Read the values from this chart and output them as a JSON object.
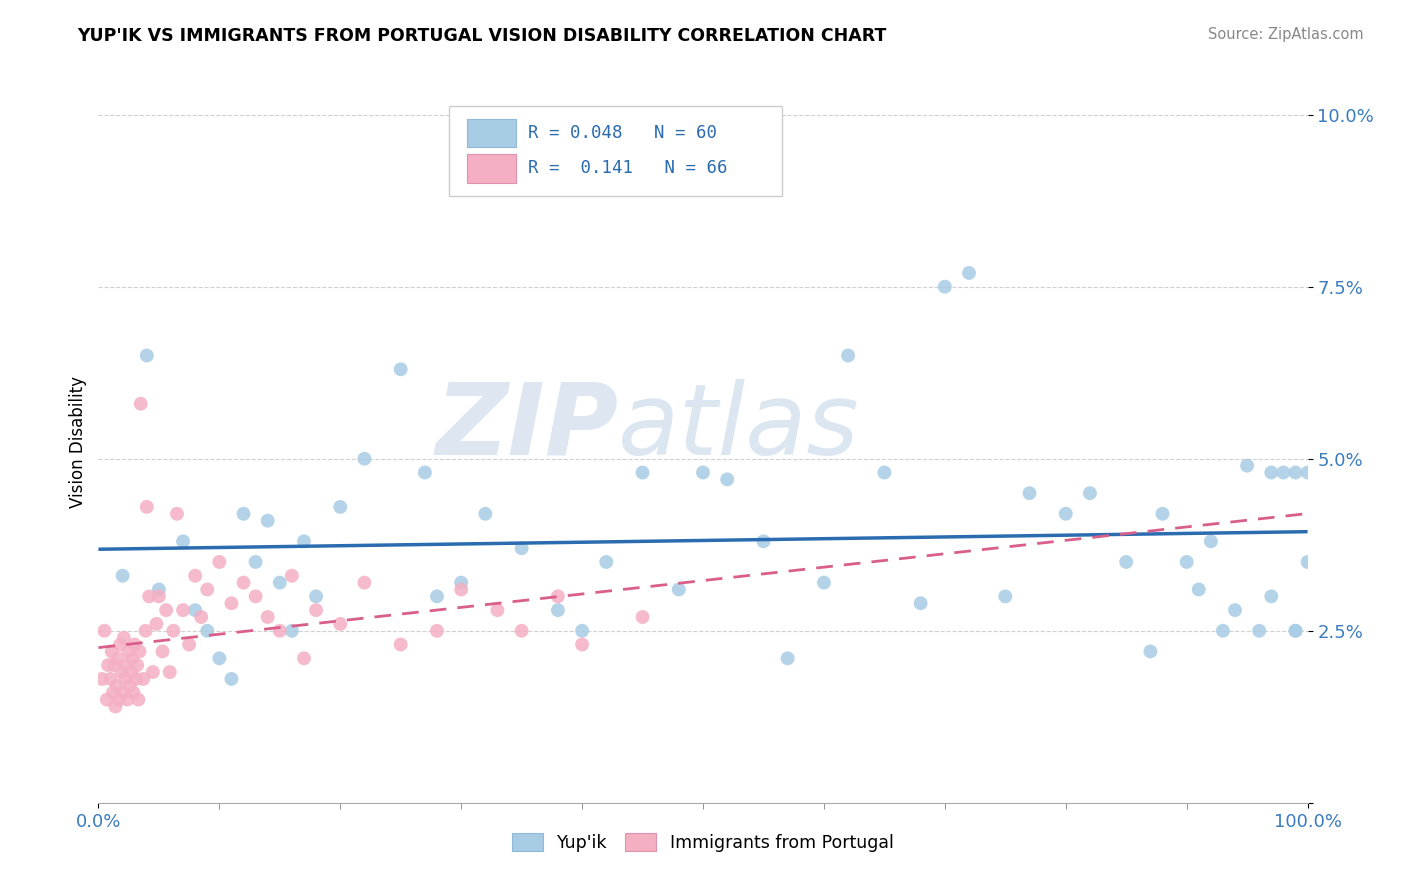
{
  "title": "YUP'IK VS IMMIGRANTS FROM PORTUGAL VISION DISABILITY CORRELATION CHART",
  "source": "Source: ZipAtlas.com",
  "ylabel": "Vision Disability",
  "R_blue": 0.048,
  "N_blue": 60,
  "R_pink": 0.141,
  "N_pink": 66,
  "blue_color": "#a8cce4",
  "pink_color": "#f4afc3",
  "blue_line_color": "#2b6cb0",
  "pink_line_color": "#d95f8a",
  "watermark_zip": "ZIP",
  "watermark_atlas": "atlas",
  "blue_x": [
    2,
    4,
    5,
    7,
    8,
    9,
    10,
    11,
    12,
    13,
    14,
    15,
    16,
    17,
    18,
    20,
    22,
    25,
    27,
    28,
    30,
    32,
    35,
    38,
    40,
    42,
    45,
    48,
    50,
    52,
    55,
    57,
    60,
    62,
    65,
    68,
    70,
    72,
    75,
    77,
    80,
    82,
    85,
    87,
    88,
    90,
    91,
    92,
    93,
    94,
    95,
    96,
    97,
    97,
    98,
    99,
    99,
    99,
    100,
    100
  ],
  "blue_y": [
    3.3,
    6.5,
    3.1,
    3.8,
    2.8,
    2.5,
    2.1,
    1.8,
    4.2,
    3.5,
    4.1,
    3.2,
    2.5,
    3.8,
    3.0,
    4.3,
    5.0,
    6.3,
    4.8,
    3.0,
    3.2,
    4.2,
    3.7,
    2.8,
    2.5,
    3.5,
    4.8,
    3.1,
    4.8,
    4.7,
    3.8,
    2.1,
    3.2,
    6.5,
    4.8,
    2.9,
    7.5,
    7.7,
    3.0,
    4.5,
    4.2,
    4.5,
    3.5,
    2.2,
    4.2,
    3.5,
    3.1,
    3.8,
    2.5,
    2.8,
    4.9,
    2.5,
    3.0,
    4.8,
    4.8,
    4.8,
    2.5,
    2.5,
    3.5,
    4.8
  ],
  "pink_x": [
    0.3,
    0.5,
    0.7,
    0.8,
    1.0,
    1.1,
    1.2,
    1.3,
    1.4,
    1.5,
    1.6,
    1.7,
    1.8,
    1.9,
    2.0,
    2.1,
    2.2,
    2.3,
    2.4,
    2.5,
    2.6,
    2.7,
    2.8,
    2.9,
    3.0,
    3.1,
    3.2,
    3.3,
    3.4,
    3.5,
    3.7,
    3.9,
    4.0,
    4.2,
    4.5,
    4.8,
    5.0,
    5.3,
    5.6,
    5.9,
    6.2,
    6.5,
    7.0,
    7.5,
    8.0,
    8.5,
    9.0,
    10.0,
    11.0,
    12.0,
    13.0,
    14.0,
    15.0,
    16.0,
    17.0,
    18.0,
    20.0,
    22.0,
    25.0,
    28.0,
    30.0,
    33.0,
    35.0,
    38.0,
    40.0,
    45.0
  ],
  "pink_y": [
    1.8,
    2.5,
    1.5,
    2.0,
    1.8,
    2.2,
    1.6,
    2.0,
    1.4,
    1.7,
    2.1,
    1.5,
    2.3,
    1.9,
    1.6,
    2.4,
    1.8,
    2.0,
    1.5,
    2.2,
    1.7,
    1.9,
    2.1,
    1.6,
    2.3,
    1.8,
    2.0,
    1.5,
    2.2,
    5.8,
    1.8,
    2.5,
    4.3,
    3.0,
    1.9,
    2.6,
    3.0,
    2.2,
    2.8,
    1.9,
    2.5,
    4.2,
    2.8,
    2.3,
    3.3,
    2.7,
    3.1,
    3.5,
    2.9,
    3.2,
    3.0,
    2.7,
    2.5,
    3.3,
    2.1,
    2.8,
    2.6,
    3.2,
    2.3,
    2.5,
    3.1,
    2.8,
    2.5,
    3.0,
    2.3,
    2.7
  ]
}
